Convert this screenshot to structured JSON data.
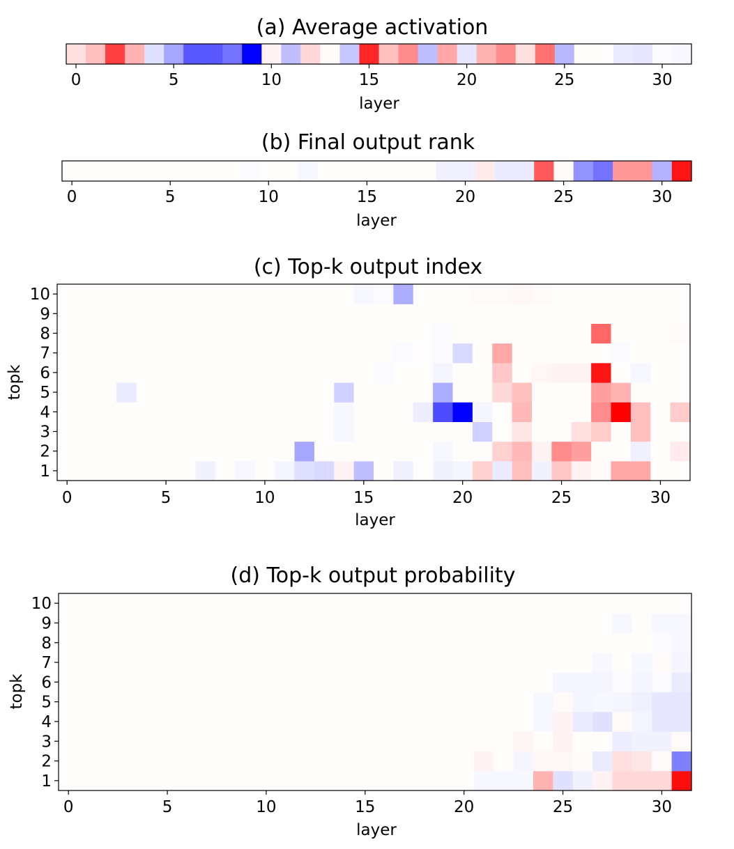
{
  "figure": {
    "colormap": {
      "low": "#0000ff",
      "mid": "#ffffff",
      "high": "#ff0000",
      "midtone": "#fffcfc"
    }
  },
  "chart_data": [
    {
      "type": "heatmap",
      "title": "(a) Average activation",
      "xlabel": "layer",
      "ylabel": "",
      "x_ticks": [
        "0",
        "5",
        "10",
        "15",
        "20",
        "25",
        "30"
      ],
      "y_ticks": [],
      "n_cols": 32,
      "values": [
        [
          0.12,
          0.25,
          0.75,
          0.3,
          -0.12,
          -0.35,
          -0.65,
          -0.65,
          -0.55,
          -1.0,
          0.05,
          -0.25,
          0.15,
          0.02,
          -0.22,
          0.85,
          0.25,
          0.45,
          -0.25,
          0.35,
          -0.1,
          0.3,
          0.45,
          0.12,
          0.55,
          -0.28,
          0.0,
          0.0,
          -0.08,
          -0.1,
          -0.02,
          -0.03
        ]
      ],
      "grid": false
    },
    {
      "type": "heatmap",
      "title": "(b) Final output rank",
      "xlabel": "layer",
      "ylabel": "",
      "x_ticks": [
        "0",
        "5",
        "10",
        "15",
        "20",
        "25",
        "30"
      ],
      "y_ticks": [],
      "n_cols": 32,
      "values": [
        [
          0.0,
          0.0,
          0.0,
          0.0,
          0.0,
          0.0,
          0.0,
          0.0,
          0.0,
          -0.02,
          0.0,
          0.0,
          -0.03,
          0.0,
          0.0,
          0.0,
          0.0,
          0.0,
          0.0,
          -0.06,
          -0.06,
          0.08,
          -0.08,
          -0.08,
          0.65,
          0.02,
          -0.42,
          -0.55,
          0.4,
          0.4,
          -0.3,
          0.92
        ]
      ],
      "grid": false
    },
    {
      "type": "heatmap",
      "title": "(c) Top-k output index",
      "xlabel": "layer",
      "ylabel": "topk",
      "x_ticks": [
        "0",
        "5",
        "10",
        "15",
        "20",
        "25",
        "30"
      ],
      "y_ticks": [
        "1",
        "2",
        "3",
        "4",
        "5",
        "6",
        "7",
        "8",
        "9",
        "10"
      ],
      "n_cols": 32,
      "rows_bottom_to_top": [
        [
          0,
          0,
          0,
          0,
          0,
          0,
          0,
          -0.05,
          0,
          -0.03,
          0,
          -0.04,
          -0.12,
          -0.15,
          0.05,
          -0.25,
          0,
          -0.06,
          0,
          -0.05,
          -0.04,
          0.18,
          -0.08,
          0.25,
          -0.05,
          0.22,
          0.05,
          0.02,
          0.35,
          0.35,
          0,
          0
        ],
        [
          0,
          0,
          0,
          0,
          0,
          0,
          0,
          0,
          0,
          0,
          0,
          0,
          -0.35,
          0,
          0,
          0,
          0,
          0,
          0,
          -0.03,
          0,
          0,
          0.18,
          0.28,
          0.05,
          0.45,
          0.38,
          0,
          0,
          -0.06,
          0,
          0.08
        ],
        [
          0,
          0,
          0,
          0,
          0,
          0,
          0,
          0,
          0,
          0,
          0,
          0,
          0,
          0,
          -0.03,
          0,
          0,
          0,
          0,
          0,
          0,
          -0.18,
          0,
          0.1,
          0,
          0,
          0.12,
          0.2,
          0,
          0.25,
          0,
          0
        ],
        [
          0,
          0,
          0,
          0,
          0,
          0,
          0,
          0,
          0,
          0,
          0,
          0,
          0,
          0,
          -0.03,
          0,
          0,
          0,
          -0.07,
          -0.7,
          -1.0,
          -0.04,
          0,
          0.28,
          0,
          0,
          0,
          0.45,
          1.0,
          0.25,
          0,
          0.2
        ],
        [
          0,
          0,
          0,
          -0.08,
          0,
          0,
          0,
          0,
          0,
          0,
          0,
          0,
          0,
          0,
          -0.18,
          0,
          0,
          0,
          0,
          -0.32,
          0,
          0,
          0.15,
          0.25,
          0,
          0,
          0,
          0.38,
          0.3,
          0,
          0,
          0
        ],
        [
          0,
          0,
          0,
          0,
          0,
          0,
          0,
          0,
          0,
          0,
          0,
          0,
          0,
          0,
          0,
          0,
          -0.02,
          0,
          0,
          -0.04,
          0,
          0,
          0.22,
          0,
          0.03,
          0.05,
          0.05,
          0.92,
          0,
          -0.03,
          0,
          0
        ],
        [
          0,
          0,
          0,
          0,
          0,
          0,
          0,
          0,
          0,
          0,
          0,
          0,
          0,
          0,
          0,
          0,
          0,
          -0.02,
          0,
          -0.02,
          -0.15,
          0,
          0.35,
          0,
          0,
          0,
          0,
          0,
          -0.02,
          0,
          0,
          0
        ],
        [
          0,
          0,
          0,
          0,
          0,
          0,
          0,
          0,
          0,
          0,
          0,
          0,
          0,
          0,
          0,
          0,
          0,
          0,
          0,
          -0.02,
          0,
          0,
          0,
          0,
          0,
          0,
          0,
          0.6,
          0,
          0,
          0,
          0.02
        ],
        [
          0,
          0,
          0,
          0,
          0,
          0,
          0,
          0,
          0,
          0,
          0,
          0,
          0,
          0,
          0,
          0,
          0,
          0,
          0,
          0,
          0,
          0,
          0,
          0,
          0,
          0,
          0,
          0,
          0,
          0,
          0,
          0
        ],
        [
          0,
          0,
          0,
          0,
          0,
          0,
          0,
          0,
          0,
          0,
          0,
          0,
          0,
          0,
          0,
          -0.03,
          -0.02,
          -0.32,
          0,
          0,
          0,
          0.02,
          0.02,
          0.03,
          0.02,
          0,
          0,
          0,
          0,
          0,
          0,
          0
        ]
      ],
      "grid": false
    },
    {
      "type": "heatmap",
      "title": "(d) Top-k output probability",
      "xlabel": "layer",
      "ylabel": "topk",
      "x_ticks": [
        "0",
        "5",
        "10",
        "15",
        "20",
        "25",
        "30"
      ],
      "y_ticks": [
        "1",
        "2",
        "3",
        "4",
        "5",
        "6",
        "7",
        "8",
        "9",
        "10"
      ],
      "n_cols": 32,
      "rows_bottom_to_top": [
        [
          0,
          0,
          0,
          0,
          0,
          0,
          0,
          0,
          0,
          0,
          0,
          0,
          0,
          0,
          0,
          0,
          0,
          0,
          0,
          0,
          0,
          -0.03,
          -0.03,
          -0.03,
          0.3,
          -0.12,
          -0.05,
          0.05,
          0.15,
          0.15,
          0.15,
          0.95
        ],
        [
          0,
          0,
          0,
          0,
          0,
          0,
          0,
          0,
          0,
          0,
          0,
          0,
          0,
          0,
          0,
          0,
          0,
          0,
          0,
          0,
          0,
          0.05,
          0,
          -0.04,
          0.03,
          0.03,
          0.02,
          -0.08,
          0.12,
          0.1,
          0.02,
          -0.5
        ],
        [
          0,
          0,
          0,
          0,
          0,
          0,
          0,
          0,
          0,
          0,
          0,
          0,
          0,
          0,
          0,
          0,
          0,
          0,
          0,
          0,
          0,
          0,
          0,
          0.04,
          0,
          0.05,
          0,
          0,
          -0.07,
          -0.05,
          -0.05,
          0.02
        ],
        [
          0,
          0,
          0,
          0,
          0,
          0,
          0,
          0,
          0,
          0,
          0,
          0,
          0,
          0,
          0,
          0,
          0,
          0,
          0,
          0,
          0,
          0,
          0,
          0,
          -0.03,
          0.05,
          -0.08,
          -0.12,
          0.02,
          -0.04,
          -0.1,
          -0.1
        ],
        [
          0,
          0,
          0,
          0,
          0,
          0,
          0,
          0,
          0,
          0,
          0,
          0,
          0,
          0,
          0,
          0,
          0,
          0,
          0,
          0,
          0,
          0,
          0,
          0,
          -0.03,
          0.02,
          -0.04,
          -0.03,
          -0.04,
          -0.06,
          -0.1,
          -0.1
        ],
        [
          0,
          0,
          0,
          0,
          0,
          0,
          0,
          0,
          0,
          0,
          0,
          0,
          0,
          0,
          0,
          0,
          0,
          0,
          0,
          0,
          0,
          0,
          0,
          0,
          0,
          -0.04,
          -0.04,
          -0.04,
          -0.02,
          -0.04,
          -0.02,
          -0.08
        ],
        [
          0,
          0,
          0,
          0,
          0,
          0,
          0,
          0,
          0,
          0,
          0,
          0,
          0,
          0,
          0,
          0,
          0,
          0,
          0,
          0,
          0,
          0,
          0,
          0,
          0,
          0,
          0,
          -0.03,
          0,
          -0.03,
          0.02,
          -0.04
        ],
        [
          0,
          0,
          0,
          0,
          0,
          0,
          0,
          0,
          0,
          0,
          0,
          0,
          0,
          0,
          0,
          0,
          0,
          0,
          0,
          0,
          0,
          0,
          0,
          0,
          0,
          0,
          0,
          0,
          0,
          0,
          -0.02,
          -0.03
        ],
        [
          0,
          0,
          0,
          0,
          0,
          0,
          0,
          0,
          0,
          0,
          0,
          0,
          0,
          0,
          0,
          0,
          0,
          0,
          0,
          0,
          0,
          0,
          0,
          0,
          0,
          0,
          0,
          0,
          -0.03,
          0,
          -0.03,
          -0.03
        ],
        [
          0,
          0,
          0,
          0,
          0,
          0,
          0,
          0,
          0,
          0,
          0,
          0,
          0,
          0,
          0,
          0,
          0,
          0,
          0,
          0,
          0,
          0,
          0,
          0,
          0,
          0,
          0,
          0,
          0,
          0,
          0,
          0
        ]
      ],
      "grid": false
    }
  ]
}
